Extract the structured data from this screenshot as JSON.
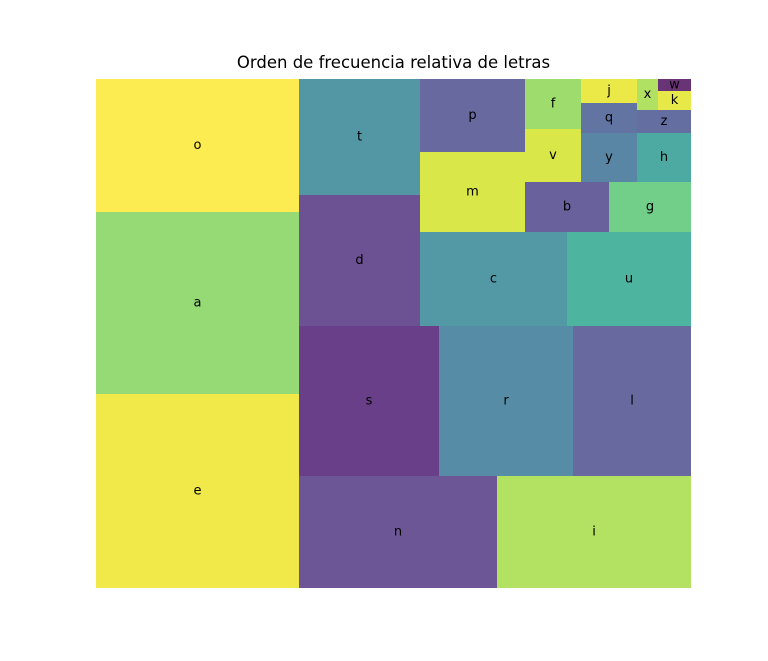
{
  "chart_data": {
    "type": "treemap",
    "title": "Orden de frecuencia relativa de letras",
    "xlabel": "",
    "ylabel": "",
    "axes_visible": false,
    "grid": false,
    "opacity": 0.8,
    "tiles": [
      {
        "label": "o",
        "color": "#fde725"
      },
      {
        "label": "a",
        "color": "#7ad151"
      },
      {
        "label": "e",
        "color": "#ece31b"
      },
      {
        "label": "t",
        "color": "#287d8e"
      },
      {
        "label": "d",
        "color": "#482778"
      },
      {
        "label": "s",
        "color": "#440f6b"
      },
      {
        "label": "n",
        "color": "#472c7a"
      },
      {
        "label": "r",
        "color": "#2c6f8e"
      },
      {
        "label": "i",
        "color": "#a0da39"
      },
      {
        "label": "l",
        "color": "#414487"
      },
      {
        "label": "c",
        "color": "#27808e"
      },
      {
        "label": "u",
        "color": "#1fa187"
      },
      {
        "label": "p",
        "color": "#414487"
      },
      {
        "label": "m",
        "color": "#d0e11c"
      },
      {
        "label": "b",
        "color": "#443a83"
      },
      {
        "label": "g",
        "color": "#4ec36b"
      },
      {
        "label": "f",
        "color": "#86d549"
      },
      {
        "label": "v",
        "color": "#d0e11c"
      },
      {
        "label": "y",
        "color": "#31688e"
      },
      {
        "label": "h",
        "color": "#1f958b"
      },
      {
        "label": "j",
        "color": "#e5e419"
      },
      {
        "label": "q",
        "color": "#3b528b"
      },
      {
        "label": "z",
        "color": "#3e4a89"
      },
      {
        "label": "x",
        "color": "#9dd93b"
      },
      {
        "label": "w",
        "color": "#440154"
      },
      {
        "label": "k",
        "color": "#e0e319"
      }
    ]
  }
}
